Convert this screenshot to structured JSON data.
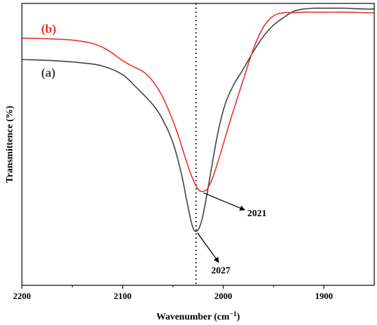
{
  "chart_data": {
    "type": "line",
    "xlabel": "Wavenumber (cm",
    "xlabel_sup": "−1",
    "xlabel_end": ")",
    "ylabel": "Transmittence (%)",
    "xlim": [
      2200,
      1850
    ],
    "x_reversed": true,
    "y_ticks_shown": false,
    "x_ticks": [
      2200,
      2100,
      2000,
      1900
    ],
    "x_tick_labels": [
      "2200",
      "2100",
      "2000",
      "1900"
    ],
    "x_minor_ticks": [
      2150,
      2050,
      1950
    ],
    "reference_line": {
      "x": 2027,
      "style": "dotted"
    },
    "series": [
      {
        "name": "(a)",
        "color": "#404040",
        "x": [
          2200,
          2170,
          2140,
          2120,
          2100,
          2085,
          2070,
          2060,
          2050,
          2042,
          2036,
          2031,
          2027,
          2022,
          2017,
          2012,
          2005,
          1998,
          1990,
          1980,
          1970,
          1960,
          1950,
          1940,
          1930,
          1920,
          1910,
          1900,
          1880,
          1860,
          1850
        ],
        "y": [
          0.801,
          0.797,
          0.789,
          0.778,
          0.747,
          0.697,
          0.641,
          0.587,
          0.506,
          0.402,
          0.296,
          0.214,
          0.191,
          0.222,
          0.306,
          0.41,
          0.547,
          0.644,
          0.709,
          0.768,
          0.83,
          0.884,
          0.923,
          0.95,
          0.972,
          0.98,
          0.983,
          0.983,
          0.983,
          0.98,
          0.98
        ]
      },
      {
        "name": "(b)",
        "color": "#e8302a",
        "x": [
          2200,
          2170,
          2150,
          2130,
          2115,
          2100,
          2090,
          2080,
          2072,
          2062,
          2052,
          2044,
          2037,
          2031,
          2025,
          2021,
          2016,
          2011,
          2005,
          1998,
          1990,
          1980,
          1970,
          1960,
          1950,
          1940,
          1930,
          1920,
          1910,
          1900,
          1880,
          1860,
          1850
        ],
        "y": [
          0.877,
          0.874,
          0.87,
          0.858,
          0.835,
          0.797,
          0.777,
          0.759,
          0.733,
          0.68,
          0.602,
          0.524,
          0.444,
          0.383,
          0.341,
          0.333,
          0.341,
          0.378,
          0.441,
          0.525,
          0.619,
          0.73,
          0.839,
          0.917,
          0.956,
          0.967,
          0.967,
          0.969,
          0.969,
          0.969,
          0.969,
          0.967,
          0.967
        ]
      }
    ],
    "annotations": [
      {
        "text": "2021",
        "x": 2021,
        "series": "(b)"
      },
      {
        "text": "2027",
        "x": 2027,
        "series": "(a)"
      }
    ]
  }
}
